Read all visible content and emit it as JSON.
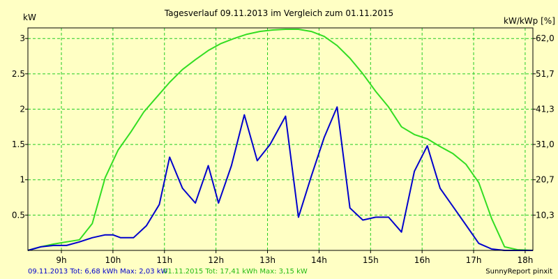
{
  "chart_data": {
    "type": "line",
    "title": "Tagesverlauf 09.11.2013 im Vergleich zum 01.11.2015",
    "ylabel_left": "kW",
    "ylabel_right": "kW/kWp [%]",
    "ylim": [
      0,
      3.15
    ],
    "x_range": [
      8.35,
      18.15
    ],
    "x_ticks": [
      {
        "v": 9,
        "label": "9h"
      },
      {
        "v": 10,
        "label": "10h"
      },
      {
        "v": 11,
        "label": "11h"
      },
      {
        "v": 12,
        "label": "12h"
      },
      {
        "v": 13,
        "label": "13h"
      },
      {
        "v": 14,
        "label": "14h"
      },
      {
        "v": 15,
        "label": "15h"
      },
      {
        "v": 16,
        "label": "16h"
      },
      {
        "v": 17,
        "label": "17h"
      },
      {
        "v": 18,
        "label": "18h"
      }
    ],
    "y_ticks_left": [
      {
        "v": 0.5,
        "label": "0.5"
      },
      {
        "v": 1,
        "label": "1"
      },
      {
        "v": 1.5,
        "label": "1.5"
      },
      {
        "v": 2,
        "label": "2"
      },
      {
        "v": 2.5,
        "label": "2.5"
      },
      {
        "v": 3,
        "label": "3"
      }
    ],
    "y_ticks_right": [
      {
        "v": 0.5,
        "label": "10,3"
      },
      {
        "v": 1,
        "label": "20,7"
      },
      {
        "v": 1.5,
        "label": "31,0"
      },
      {
        "v": 2,
        "label": "41,3"
      },
      {
        "v": 2.5,
        "label": "51,7"
      },
      {
        "v": 3,
        "label": "62,0"
      }
    ],
    "grid": true,
    "series": [
      {
        "name": "09.11.2013",
        "color": "#0000cc",
        "points": [
          [
            8.35,
            0.0
          ],
          [
            8.6,
            0.05
          ],
          [
            8.85,
            0.07
          ],
          [
            9.1,
            0.07
          ],
          [
            9.35,
            0.12
          ],
          [
            9.6,
            0.18
          ],
          [
            9.85,
            0.22
          ],
          [
            10.0,
            0.22
          ],
          [
            10.15,
            0.18
          ],
          [
            10.4,
            0.18
          ],
          [
            10.65,
            0.35
          ],
          [
            10.9,
            0.65
          ],
          [
            11.1,
            1.32
          ],
          [
            11.35,
            0.88
          ],
          [
            11.6,
            0.67
          ],
          [
            11.85,
            1.2
          ],
          [
            12.05,
            0.67
          ],
          [
            12.3,
            1.2
          ],
          [
            12.55,
            1.92
          ],
          [
            12.8,
            1.27
          ],
          [
            13.05,
            1.5
          ],
          [
            13.35,
            1.9
          ],
          [
            13.6,
            0.47
          ],
          [
            13.85,
            1.05
          ],
          [
            14.1,
            1.6
          ],
          [
            14.35,
            2.03
          ],
          [
            14.6,
            0.6
          ],
          [
            14.85,
            0.43
          ],
          [
            15.1,
            0.47
          ],
          [
            15.35,
            0.47
          ],
          [
            15.6,
            0.26
          ],
          [
            15.85,
            1.12
          ],
          [
            16.1,
            1.48
          ],
          [
            16.35,
            0.88
          ],
          [
            16.6,
            0.62
          ],
          [
            16.85,
            0.36
          ],
          [
            17.1,
            0.1
          ],
          [
            17.35,
            0.02
          ],
          [
            17.6,
            0.0
          ],
          [
            17.85,
            0.0
          ],
          [
            18.15,
            0.0
          ]
        ]
      },
      {
        "name": "01.11.2015",
        "color": "#33dd22",
        "points": [
          [
            8.35,
            0.0
          ],
          [
            8.6,
            0.05
          ],
          [
            8.85,
            0.09
          ],
          [
            9.1,
            0.12
          ],
          [
            9.35,
            0.15
          ],
          [
            9.6,
            0.38
          ],
          [
            9.85,
            1.03
          ],
          [
            10.1,
            1.42
          ],
          [
            10.35,
            1.68
          ],
          [
            10.6,
            1.96
          ],
          [
            10.85,
            2.17
          ],
          [
            11.1,
            2.38
          ],
          [
            11.35,
            2.56
          ],
          [
            11.6,
            2.7
          ],
          [
            11.85,
            2.83
          ],
          [
            12.1,
            2.93
          ],
          [
            12.35,
            3.0
          ],
          [
            12.6,
            3.06
          ],
          [
            12.85,
            3.1
          ],
          [
            13.1,
            3.12
          ],
          [
            13.35,
            3.13
          ],
          [
            13.6,
            3.13
          ],
          [
            13.85,
            3.1
          ],
          [
            14.1,
            3.03
          ],
          [
            14.35,
            2.9
          ],
          [
            14.6,
            2.72
          ],
          [
            14.85,
            2.5
          ],
          [
            15.1,
            2.25
          ],
          [
            15.35,
            2.03
          ],
          [
            15.6,
            1.75
          ],
          [
            15.85,
            1.64
          ],
          [
            16.1,
            1.58
          ],
          [
            16.35,
            1.47
          ],
          [
            16.6,
            1.37
          ],
          [
            16.85,
            1.22
          ],
          [
            17.1,
            0.96
          ],
          [
            17.35,
            0.45
          ],
          [
            17.6,
            0.05
          ],
          [
            17.85,
            0.01
          ],
          [
            18.15,
            0.0
          ]
        ]
      }
    ]
  },
  "footer": {
    "series1_text": "09.11.2013 Tot: 6,68 kWh Max: 2,03 kW",
    "series2_text": "01.11.2015 Tot: 17,41 kWh Max: 3,15 kW",
    "brand": "SunnyReport pinxit"
  }
}
